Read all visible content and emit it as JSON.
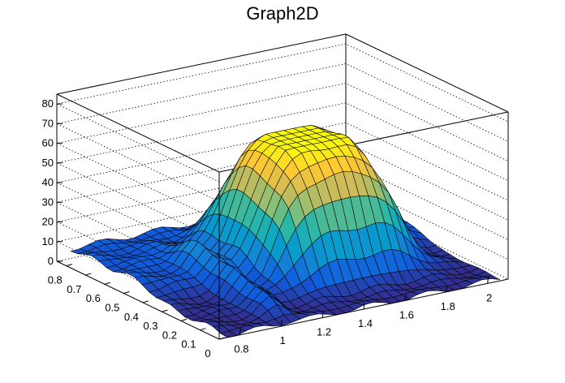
{
  "chart_data": {
    "type": "surface",
    "title": "Graph2D",
    "xlabel": "",
    "ylabel": "",
    "zlabel": "",
    "xlim": [
      0.7,
      2.1
    ],
    "ylim": [
      0,
      0.85
    ],
    "zlim": [
      0,
      85
    ],
    "x_ticks": [
      "0.8",
      "1",
      "1.2",
      "1.4",
      "1.6",
      "1.8",
      "2"
    ],
    "y_ticks": [
      "0",
      "0.1",
      "0.2",
      "0.3",
      "0.4",
      "0.5",
      "0.6",
      "0.7",
      "0.8"
    ],
    "z_ticks": [
      "0",
      "10",
      "20",
      "30",
      "40",
      "50",
      "60",
      "70",
      "80"
    ],
    "grid": true,
    "colormap": [
      "#352a87",
      "#0f5cdd",
      "#1481d6",
      "#06a4ca",
      "#2eb7a4",
      "#87bf77",
      "#d1bb59",
      "#fec832",
      "#f9fb0e"
    ],
    "description_of_surface": {
      "low_plateau_z": 6,
      "peak_z": 61,
      "peak_x": 1.55,
      "peak_y": 0.45
    }
  }
}
